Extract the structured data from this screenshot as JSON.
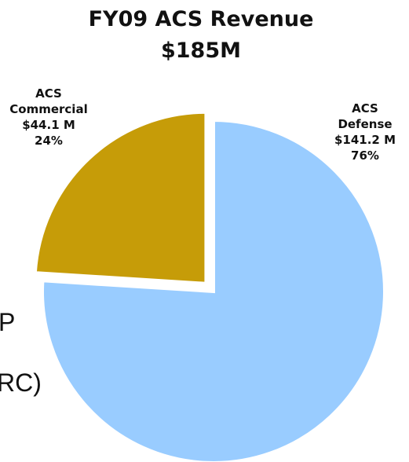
{
  "background_text": [
    "P",
    "RC)"
  ],
  "chart_data": {
    "type": "pie",
    "title": "FY09 ACS Revenue",
    "subtitle": "$185M",
    "slices": [
      {
        "label": "ACS Defense",
        "label_lines": [
          "ACS",
          "Defense"
        ],
        "value_text": "$141.2 M",
        "percent_text": "76%",
        "value": 141.2,
        "percent": 76,
        "color": "#99ccff",
        "exploded": false
      },
      {
        "label": "ACS Commercial",
        "label_lines": [
          "ACS",
          "Commercial"
        ],
        "value_text": "$44.1 M",
        "percent_text": "24%",
        "value": 44.1,
        "percent": 24,
        "color": "#c69c08",
        "exploded": true
      }
    ]
  }
}
